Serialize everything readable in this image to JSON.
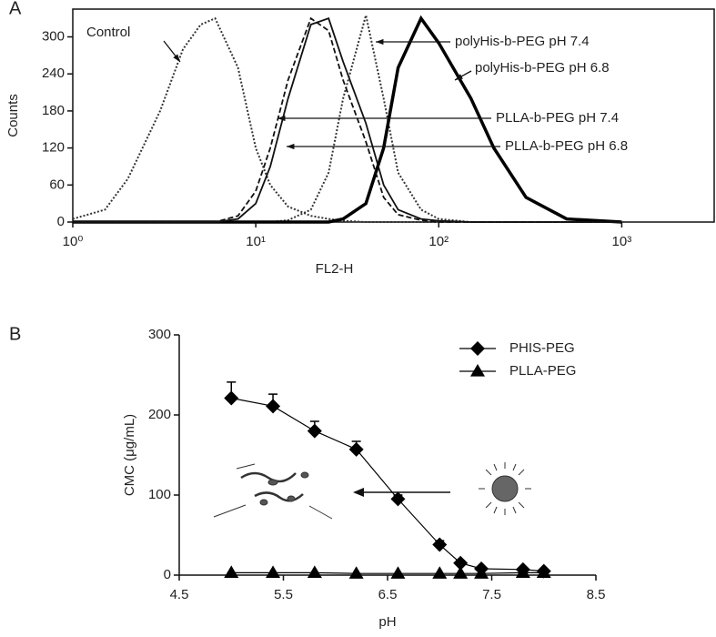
{
  "chart_data": [
    {
      "type": "line",
      "panel": "A",
      "xlabel": "FL2-H",
      "ylabel": "Counts",
      "log_x": true,
      "xlim": [
        1,
        3200
      ],
      "ylim": [
        0,
        345
      ],
      "xticks": [
        {
          "value": 1,
          "label": "10⁰"
        },
        {
          "value": 10,
          "label": "10¹"
        },
        {
          "value": 100,
          "label": "10²"
        },
        {
          "value": 1000,
          "label": "10³"
        }
      ],
      "yticks": [
        0,
        60,
        120,
        180,
        240,
        300
      ],
      "x": [
        1,
        1.5,
        2,
        3,
        4,
        5,
        6,
        8,
        10,
        12,
        15,
        20,
        25,
        30,
        40,
        50,
        60,
        80,
        100,
        150,
        200,
        300,
        500,
        1000
      ],
      "series": [
        {
          "name": "Control",
          "color": "#333333",
          "dash": "dotted",
          "width": 2,
          "values": [
            5,
            20,
            70,
            180,
            280,
            320,
            330,
            250,
            120,
            60,
            25,
            10,
            5,
            2,
            0,
            0,
            0,
            0,
            0,
            0,
            0,
            0,
            0,
            0
          ]
        },
        {
          "name": "polyHis-b-PEG pH 7.4",
          "color": "#333333",
          "dash": "dotted",
          "width": 2,
          "values": [
            0,
            0,
            0,
            0,
            0,
            0,
            0,
            0,
            0,
            0,
            3,
            20,
            80,
            200,
            335,
            200,
            80,
            20,
            5,
            0,
            0,
            0,
            0,
            0
          ]
        },
        {
          "name": "polyHis-b-PEG pH 6.8",
          "color": "#000000",
          "dash": "solid",
          "width": 3.5,
          "values": [
            0,
            0,
            0,
            0,
            0,
            0,
            0,
            0,
            0,
            0,
            0,
            0,
            0,
            5,
            30,
            120,
            250,
            330,
            290,
            200,
            120,
            40,
            5,
            0
          ]
        },
        {
          "name": "PLLA-b-PEG pH 7.4",
          "color": "#111111",
          "dash": "solid",
          "width": 1.8,
          "values": [
            0,
            0,
            0,
            0,
            0,
            0,
            0,
            5,
            30,
            90,
            200,
            320,
            330,
            260,
            160,
            60,
            20,
            5,
            2,
            0,
            0,
            0,
            0,
            0
          ]
        },
        {
          "name": "PLLA-b-PEG pH 6.8",
          "color": "#111111",
          "dash": "dashed",
          "width": 1.8,
          "values": [
            0,
            0,
            0,
            0,
            0,
            0,
            0,
            10,
            50,
            120,
            230,
            330,
            310,
            230,
            130,
            40,
            12,
            3,
            0,
            0,
            0,
            0,
            0,
            0
          ]
        }
      ]
    },
    {
      "type": "line",
      "panel": "B",
      "xlabel": "pH",
      "ylabel": "CMC (μg/mL)",
      "xlim": [
        4.5,
        8.5
      ],
      "ylim": [
        0,
        300
      ],
      "xticks": [
        4.5,
        5.5,
        6.5,
        7.5,
        8.5
      ],
      "yticks": [
        0,
        100,
        200,
        300
      ],
      "x": [
        5.0,
        5.4,
        5.8,
        6.2,
        6.6,
        7.0,
        7.2,
        7.4,
        7.8,
        8.0
      ],
      "series": [
        {
          "name": "PHIS-PEG",
          "color": "#000000",
          "marker": "diamond",
          "values": [
            221,
            211,
            180,
            157,
            95,
            38,
            15,
            8,
            7,
            5
          ],
          "errors": [
            20,
            15,
            12,
            10,
            5,
            5,
            3,
            2,
            2,
            2
          ]
        },
        {
          "name": "PLLA-PEG",
          "color": "#000000",
          "marker": "triangle",
          "values": [
            3,
            3,
            3,
            2,
            2,
            2,
            2,
            2,
            3,
            3
          ]
        }
      ]
    }
  ]
}
